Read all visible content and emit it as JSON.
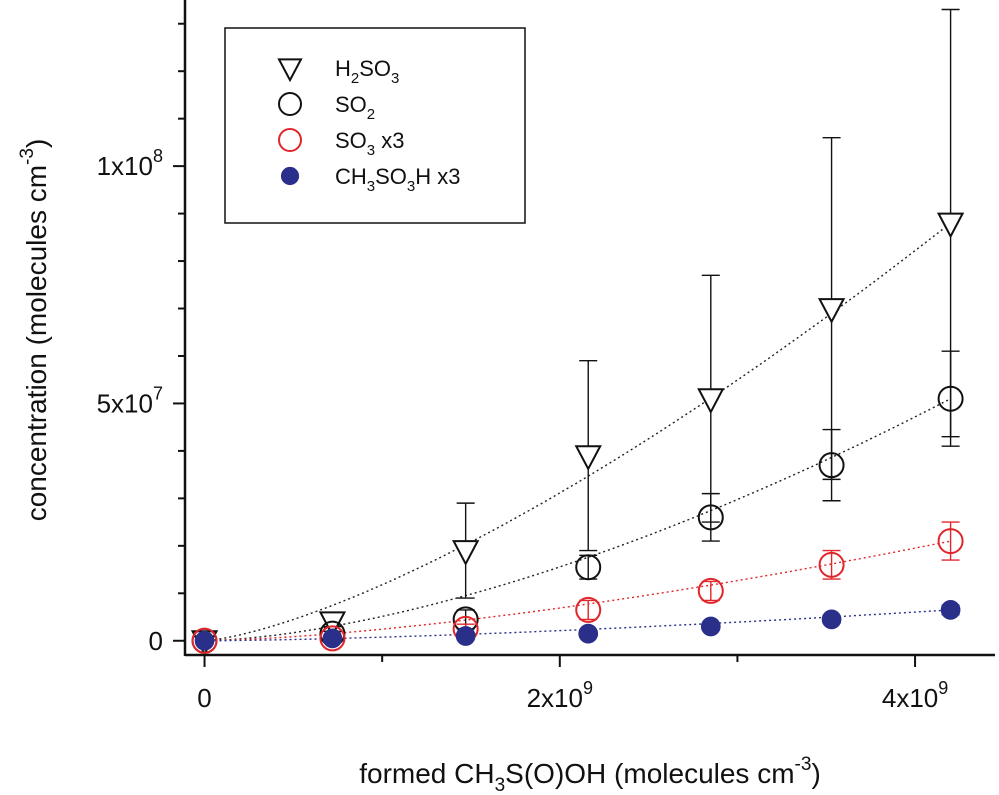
{
  "chart_data": {
    "type": "scatter",
    "xlabel": {
      "pre": "formed CH",
      "sub": "3",
      "post": "S(O)OH  (molecules cm",
      "sup": "-3",
      "close": ")"
    },
    "ylabel": {
      "pre": "concentration (molecules cm",
      "sup": "-3",
      "close": ")"
    },
    "xlim": [
      -110000000.0,
      4450000000.0
    ],
    "ylim": [
      -3000000.0,
      135000000.0
    ],
    "x_ticks": [
      {
        "value": 0,
        "mant": "0",
        "exp": ""
      },
      {
        "value": 2000000000,
        "mant": "2x10",
        "exp": "9"
      },
      {
        "value": 4000000000,
        "mant": "4x10",
        "exp": "9"
      }
    ],
    "x_minor_ticks": [
      1000000000,
      3000000000
    ],
    "y_ticks": [
      {
        "value": 0,
        "mant": "0",
        "exp": ""
      },
      {
        "value": 50000000,
        "mant": "5x10",
        "exp": "7"
      },
      {
        "value": 100000000,
        "mant": "1x10",
        "exp": "8"
      }
    ],
    "y_minor_ticks": [
      10000000,
      20000000,
      30000000,
      40000000,
      60000000,
      70000000,
      80000000,
      90000000,
      110000000,
      120000000,
      130000000
    ],
    "grid": false,
    "legend_position": "top-left",
    "series": [
      {
        "name": "H2SO3",
        "legend": [
          {
            "t": "H"
          },
          {
            "t": "2",
            "sub": true
          },
          {
            "t": "SO"
          },
          {
            "t": "3",
            "sub": true
          }
        ],
        "marker": "triangle-down-open",
        "color": "#111111",
        "fit_color": "#222222",
        "fit_exponent": 1.4,
        "fit_end": 88000000,
        "x": [
          0,
          720000000,
          1470000000,
          2160000000,
          2850000000,
          3530000000,
          4200000000
        ],
        "y": [
          0,
          4000000,
          19000000,
          39000000,
          51000000,
          70000000,
          88000000
        ],
        "err": [
          0,
          2000000,
          10000000,
          20000000,
          26000000,
          36000000,
          45000000
        ]
      },
      {
        "name": "SO2",
        "legend": [
          {
            "t": "SO"
          },
          {
            "t": "2",
            "sub": true
          }
        ],
        "marker": "circle-open",
        "color": "#111111",
        "fit_color": "#222222",
        "fit_exponent": 1.6,
        "fit_end": 51000000,
        "x": [
          0,
          720000000,
          1470000000,
          2160000000,
          2850000000,
          3530000000,
          4200000000
        ],
        "y": [
          0,
          1500000,
          4500000,
          15500000,
          26000000,
          37000000,
          51000000
        ],
        "err": [
          0,
          1500000,
          2000000,
          2500000,
          5000000,
          7500000,
          10000000
        ]
      },
      {
        "name": "SO3 x3",
        "legend": [
          {
            "t": "SO"
          },
          {
            "t": "3",
            "sub": true
          },
          {
            "t": "  x3"
          }
        ],
        "marker": "circle-open",
        "color": "#e0262a",
        "fit_color": "#e0262a",
        "fit_exponent": 1.5,
        "fit_end": 21000000,
        "x": [
          0,
          720000000,
          1470000000,
          2160000000,
          2850000000,
          3530000000,
          4200000000
        ],
        "y": [
          0,
          500000,
          2500000,
          6500000,
          10500000,
          16000000,
          21000000
        ],
        "err": [
          0,
          500000,
          1000000,
          2000000,
          2000000,
          3000000,
          4000000
        ]
      },
      {
        "name": "CH3SO3H x3",
        "legend": [
          {
            "t": "CH"
          },
          {
            "t": "3",
            "sub": true
          },
          {
            "t": "SO"
          },
          {
            "t": "3",
            "sub": true
          },
          {
            "t": "H x3"
          }
        ],
        "marker": "circle-filled",
        "color": "#2a2f8a",
        "fit_color": "#2a2f8a",
        "fit_exponent": 1.5,
        "fit_end": 6500000,
        "x": [
          0,
          720000000,
          1470000000,
          2160000000,
          2850000000,
          3530000000,
          4200000000
        ],
        "y": [
          0,
          500000,
          1000000,
          1500000,
          3000000,
          4500000,
          6500000
        ],
        "err": [
          0,
          300000,
          300000,
          500000,
          500000,
          800000,
          1000000
        ]
      }
    ]
  }
}
